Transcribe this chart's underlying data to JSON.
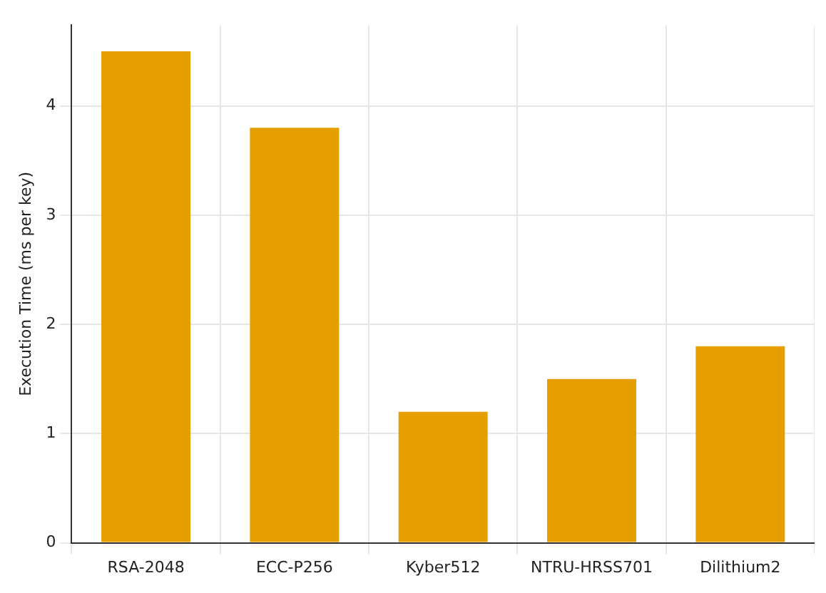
{
  "chart_data": {
    "type": "bar",
    "ylabel": "Execution Time (ms per key)",
    "categories": [
      "RSA-2048",
      "ECC-P256",
      "Kyber512",
      "NTRU-HRSS701",
      "Dilithium2"
    ],
    "values": [
      4.5,
      3.8,
      1.2,
      1.5,
      1.8
    ],
    "color": "#e69f00",
    "ylim": [
      0,
      4.74
    ],
    "yticks": [
      0,
      1,
      2,
      3,
      4
    ],
    "grid": true
  }
}
